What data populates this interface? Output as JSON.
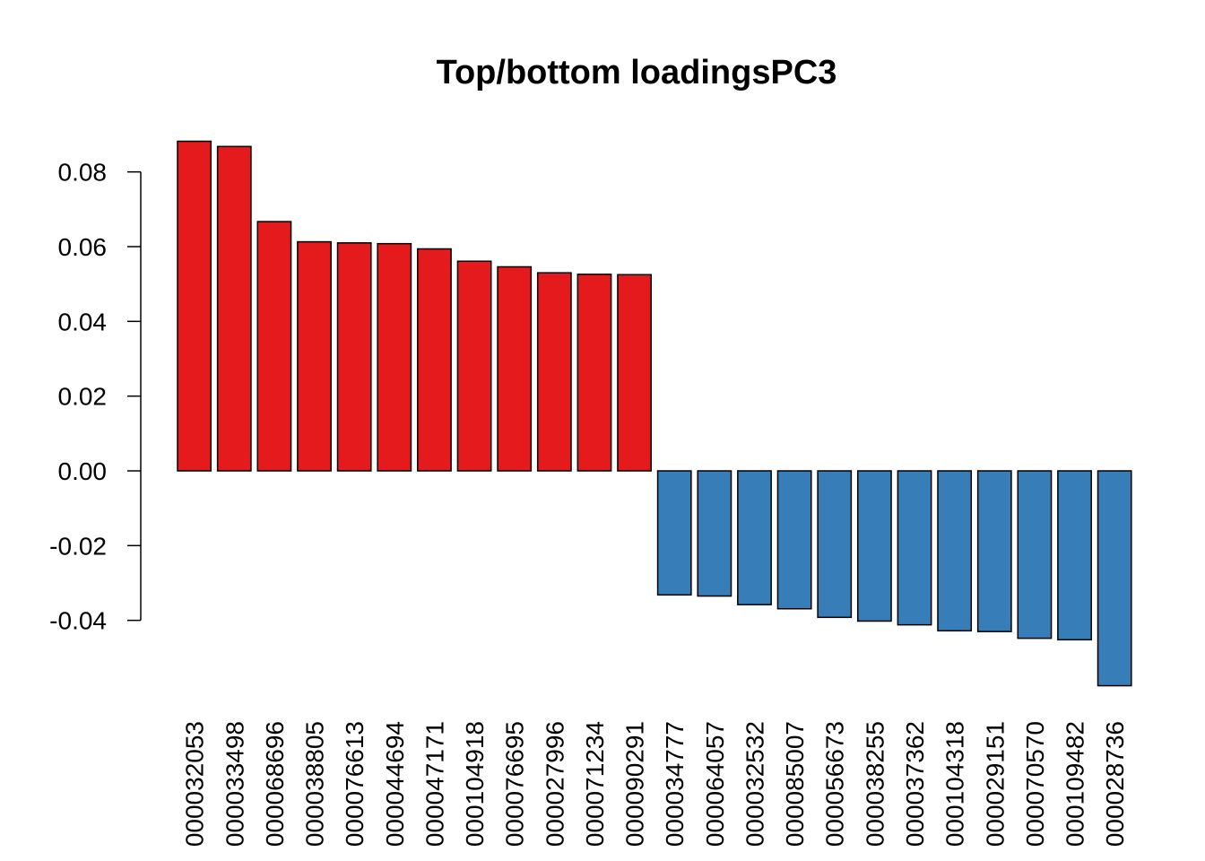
{
  "chart_data": {
    "type": "bar",
    "title": "Top/bottom loadingsPC3",
    "xlabel": "",
    "ylabel": "",
    "ylim": [
      -0.0575,
      0.088
    ],
    "yticks": [
      -0.04,
      -0.02,
      0.0,
      0.02,
      0.04,
      0.06,
      0.08
    ],
    "ytick_labels": [
      "-0.04",
      "-0.02",
      "0.00",
      "0.02",
      "0.04",
      "0.06",
      "0.08"
    ],
    "categories": [
      "000032053",
      "000033498",
      "000068696",
      "000038805",
      "000076613",
      "000044694",
      "000047171",
      "000104918",
      "000076695",
      "000027996",
      "000071234",
      "000090291",
      "000034777",
      "000064057",
      "000032532",
      "000085007",
      "000056673",
      "000038255",
      "000037362",
      "000104318",
      "000029151",
      "000070570",
      "000109482",
      "000028736"
    ],
    "values": [
      0.0882,
      0.0868,
      0.0667,
      0.0613,
      0.061,
      0.0608,
      0.0594,
      0.0561,
      0.0546,
      0.053,
      0.0526,
      0.0525,
      -0.0332,
      -0.0335,
      -0.0358,
      -0.0369,
      -0.0392,
      -0.0402,
      -0.0412,
      -0.0428,
      -0.043,
      -0.0448,
      -0.0452,
      -0.0575
    ],
    "colors": {
      "positive": "#E41A1C",
      "negative": "#377EB8"
    },
    "grid": false,
    "legend": "none"
  }
}
